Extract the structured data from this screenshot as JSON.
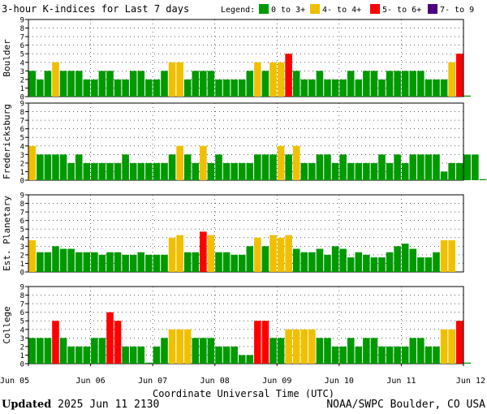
{
  "header": {
    "title": "3-hour K-indices for Last 7 days",
    "legend_label": "Legend:",
    "legend": [
      {
        "label": "0 to 3+",
        "color": "#009900"
      },
      {
        "label": "4- to 4+",
        "color": "#f0c000"
      },
      {
        "label": "5- to 6+",
        "color": "#ff0000"
      },
      {
        "label": "7- to 9",
        "color": "#4b0082"
      }
    ]
  },
  "footer": {
    "updated_label": "Updated",
    "updated_value": "2025 Jun 11 2130",
    "credit": "NOAA/SWPC Boulder, CO USA"
  },
  "chart_data": {
    "type": "bar",
    "xlabel": "Coordinate Universal Time (UTC)",
    "x_ticks": [
      "Jun 05",
      "Jun 06",
      "Jun 07",
      "Jun 08",
      "Jun 09",
      "Jun 10",
      "Jun 11",
      "Jun 12"
    ],
    "ylim": [
      0,
      9
    ],
    "y_ticks": [
      0,
      1,
      2,
      3,
      4,
      5,
      6,
      7,
      8,
      9
    ],
    "bins_per_day": 8,
    "grid": true,
    "colors": {
      "low": "#009900",
      "mid": "#f0c000",
      "high": "#ff0000",
      "severe": "#4b0082"
    },
    "panels": [
      {
        "name": "Boulder",
        "values": [
          3,
          2,
          3,
          4,
          3,
          3,
          3,
          2,
          2,
          3,
          3,
          2,
          2,
          3,
          3,
          2,
          2,
          3,
          4,
          4,
          2,
          3,
          3,
          3,
          2,
          2,
          2,
          2,
          3,
          4,
          3,
          4,
          4,
          5,
          3,
          2,
          2,
          3,
          2,
          2,
          2,
          3,
          2,
          3,
          3,
          2,
          3,
          3,
          3,
          3,
          3,
          2,
          2,
          2,
          4,
          5,
          0
        ]
      },
      {
        "name": "Fredericksburg",
        "values": [
          4,
          3,
          3,
          3,
          3,
          2,
          3,
          2,
          2,
          2,
          2,
          2,
          3,
          2,
          2,
          2,
          2,
          2,
          3,
          4,
          3,
          2,
          4,
          2,
          3,
          2,
          2,
          2,
          2,
          3,
          3,
          3,
          4,
          3,
          4,
          2,
          2,
          3,
          3,
          2,
          3,
          2,
          2,
          2,
          2,
          3,
          2,
          3,
          2,
          3,
          3,
          3,
          3,
          1,
          2,
          2,
          3,
          3,
          0
        ]
      },
      {
        "name": "Est. Planetary",
        "values": [
          3.7,
          2.3,
          2.3,
          3,
          2.7,
          2.7,
          2.3,
          2.3,
          2.3,
          2,
          2.3,
          2.3,
          2,
          2,
          2.3,
          2,
          2,
          2,
          4,
          4.3,
          2.3,
          2.3,
          4.7,
          4.3,
          2.3,
          2.3,
          2,
          2,
          3,
          4,
          3,
          4.3,
          4,
          4.3,
          2.7,
          2.3,
          2.3,
          2.7,
          2,
          3,
          2.7,
          1.7,
          2.3,
          2,
          1.7,
          1.7,
          2.3,
          3,
          3.3,
          2.7,
          1.7,
          1.7,
          2.3,
          3.7,
          3.7
        ]
      },
      {
        "name": "College",
        "values": [
          3,
          3,
          3,
          5,
          3,
          2,
          2,
          2,
          3,
          3,
          6,
          5,
          2,
          2,
          2,
          0,
          2,
          3,
          4,
          4,
          4,
          3,
          3,
          3,
          2,
          2,
          2,
          1,
          1,
          5,
          5,
          3,
          3,
          4,
          4,
          4,
          4,
          3,
          3,
          2,
          2,
          3,
          2,
          3,
          3,
          2,
          2,
          2,
          2,
          3,
          3,
          2,
          2,
          4,
          4,
          5,
          0
        ]
      }
    ]
  }
}
